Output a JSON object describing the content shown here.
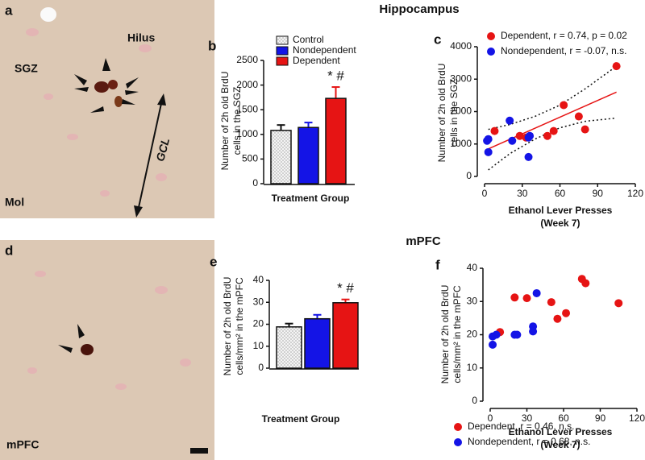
{
  "figure": {
    "headings": [
      "Hippocampus",
      "mPFC"
    ],
    "letters": [
      "a",
      "b",
      "c",
      "d",
      "e",
      "f"
    ],
    "image_a_labels": [
      "SGZ",
      "Hilus",
      "Mol",
      "GCL"
    ],
    "image_d_labels": [
      "mPFC"
    ]
  },
  "chart_data": [
    {
      "type": "bar",
      "ylabel": [
        "Number of 2h old BrdU",
        "cells in the SGZ"
      ],
      "xlabel": "Treatment Group",
      "ylim": [
        0,
        2500
      ],
      "yticks": [
        0,
        500,
        1000,
        1500,
        2000,
        2500
      ],
      "annotation": "* #",
      "series": [
        {
          "name": "Control",
          "color": "#f2f2f2",
          "pattern": "dots",
          "values": [
            1080
          ],
          "errors": [
            110
          ]
        },
        {
          "name": "Nondependent",
          "color": "#1414e6",
          "values": [
            1140
          ],
          "errors": [
            100
          ]
        },
        {
          "name": "Dependent",
          "color": "#e61414",
          "values": [
            1730
          ],
          "errors": [
            230
          ]
        }
      ]
    },
    {
      "type": "scatter",
      "ylabel": [
        "Number of 2h old BrdU",
        "cells in the SGZ"
      ],
      "xlabel": [
        "Ethanol Lever Presses",
        "(Week 7)"
      ],
      "xlim": [
        0,
        120
      ],
      "xticks": [
        0,
        30,
        60,
        90,
        120
      ],
      "ylim": [
        0,
        4000
      ],
      "yticks": [
        0,
        1000,
        2000,
        3000,
        4000
      ],
      "legend": "top-left",
      "series": [
        {
          "name": "Dependent, r = 0.74, p = 0.02",
          "color": "#e61414",
          "x": [
            8,
            28,
            33,
            50,
            55,
            63,
            75,
            80,
            105
          ],
          "y": [
            1400,
            1250,
            1200,
            1250,
            1400,
            2200,
            1850,
            1450,
            3400
          ]
        },
        {
          "name": "Nondependent, r = -0.07, n.s.",
          "color": "#1414e6",
          "x": [
            2,
            3,
            3,
            20,
            22,
            35,
            35,
            36
          ],
          "y": [
            1100,
            1150,
            750,
            1720,
            1100,
            1200,
            600,
            1250
          ]
        }
      ],
      "fit": {
        "color": "#e61414",
        "x": [
          3,
          105
        ],
        "y": [
          850,
          2600
        ]
      },
      "band": {
        "x": [
          3,
          20,
          40,
          60,
          80,
          105
        ],
        "lower": [
          200,
          700,
          1150,
          1500,
          1700,
          1800
        ],
        "upper": [
          1450,
          1600,
          1850,
          2200,
          2700,
          3400
        ]
      }
    },
    {
      "type": "bar",
      "ylabel": [
        "Number of 2h old BrdU",
        "cells/mm² in the mPFC"
      ],
      "xlabel": "Treatment Group",
      "ylim": [
        0,
        40
      ],
      "yticks": [
        0,
        10,
        20,
        30,
        40
      ],
      "annotation": "* #",
      "series": [
        {
          "color": "#f2f2f2",
          "pattern": "dots",
          "values": [
            18.8
          ],
          "errors": [
            1.5
          ]
        },
        {
          "color": "#1414e6",
          "values": [
            22.5
          ],
          "errors": [
            1.8
          ]
        },
        {
          "color": "#e61414",
          "values": [
            29.8
          ],
          "errors": [
            1.5
          ]
        }
      ]
    },
    {
      "type": "scatter",
      "ylabel": [
        "Number of 2h old BrdU",
        "cells/mm² in the mPFC"
      ],
      "xlabel": [
        "Ethanol Lever Presses",
        "(Week 7)"
      ],
      "xlim": [
        0,
        120
      ],
      "xticks": [
        0,
        30,
        60,
        90,
        120
      ],
      "ylim": [
        0,
        40
      ],
      "yticks": [
        0,
        10,
        20,
        30,
        40
      ],
      "legend": "bottom-left",
      "series": [
        {
          "name": "Dependent, r = 0.46, n.s.",
          "color": "#e61414",
          "x": [
            8,
            20,
            30,
            50,
            55,
            62,
            75,
            78,
            105
          ],
          "y": [
            20.8,
            31.2,
            31,
            29.8,
            24.8,
            26.5,
            36.8,
            35.5,
            29.5
          ]
        },
        {
          "name": "Nondependent, r = 0.68, n.s.",
          "color": "#1414e6",
          "x": [
            2,
            2,
            5,
            20,
            22,
            35,
            35,
            38
          ],
          "y": [
            17,
            19.5,
            20,
            20,
            20,
            22.5,
            21,
            32.5
          ]
        }
      ]
    }
  ]
}
